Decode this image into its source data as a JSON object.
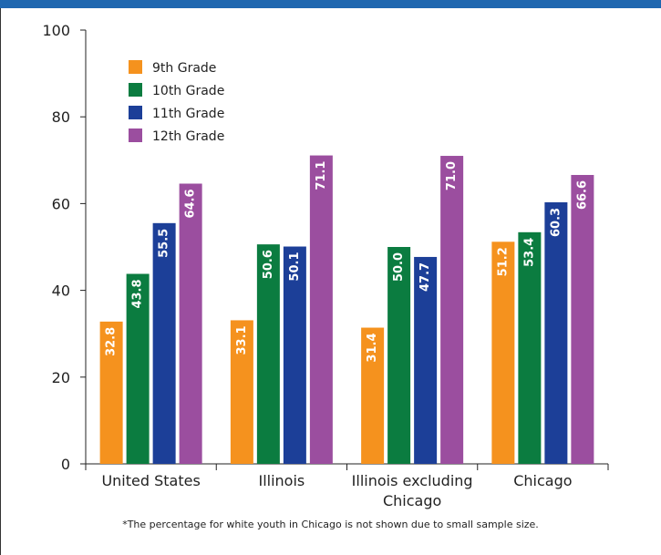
{
  "chart_data": {
    "type": "bar",
    "categories": [
      "United States",
      "Illinois",
      "Illinois excluding Chicago",
      "Chicago"
    ],
    "category_label_lines": [
      [
        "United States"
      ],
      [
        "Illinois"
      ],
      [
        "Illinois excluding",
        "Chicago"
      ],
      [
        "Chicago"
      ]
    ],
    "series": [
      {
        "name": "9th Grade",
        "color": "#f5921e",
        "values": [
          32.8,
          33.1,
          31.4,
          51.2
        ]
      },
      {
        "name": "10th Grade",
        "color": "#0b7c40",
        "values": [
          43.8,
          50.6,
          50.0,
          53.4
        ]
      },
      {
        "name": "11th Grade",
        "color": "#1c3f98",
        "values": [
          55.5,
          50.1,
          47.7,
          60.3
        ]
      },
      {
        "name": "12th Grade",
        "color": "#9b4e9f",
        "values": [
          64.6,
          71.1,
          71.0,
          66.6
        ]
      }
    ],
    "ylim": [
      0,
      100
    ],
    "yticks": [
      0,
      20,
      40,
      60,
      80,
      100
    ],
    "ytick_labels": [
      "0",
      "20",
      "40",
      "60",
      "80",
      "100"
    ],
    "data_labels": [
      [
        "32.8",
        "43.8",
        "55.5",
        "64.6"
      ],
      [
        "33.1",
        "50.6",
        "50.1",
        "71.1"
      ],
      [
        "31.4",
        "50.0",
        "47.7",
        "71.0"
      ],
      [
        "51.2",
        "53.4",
        "60.3",
        "66.6"
      ]
    ],
    "legend_position": "top-left",
    "grid": false
  },
  "footnote": "*The percentage for white youth in Chicago is not shown due to small sample size."
}
